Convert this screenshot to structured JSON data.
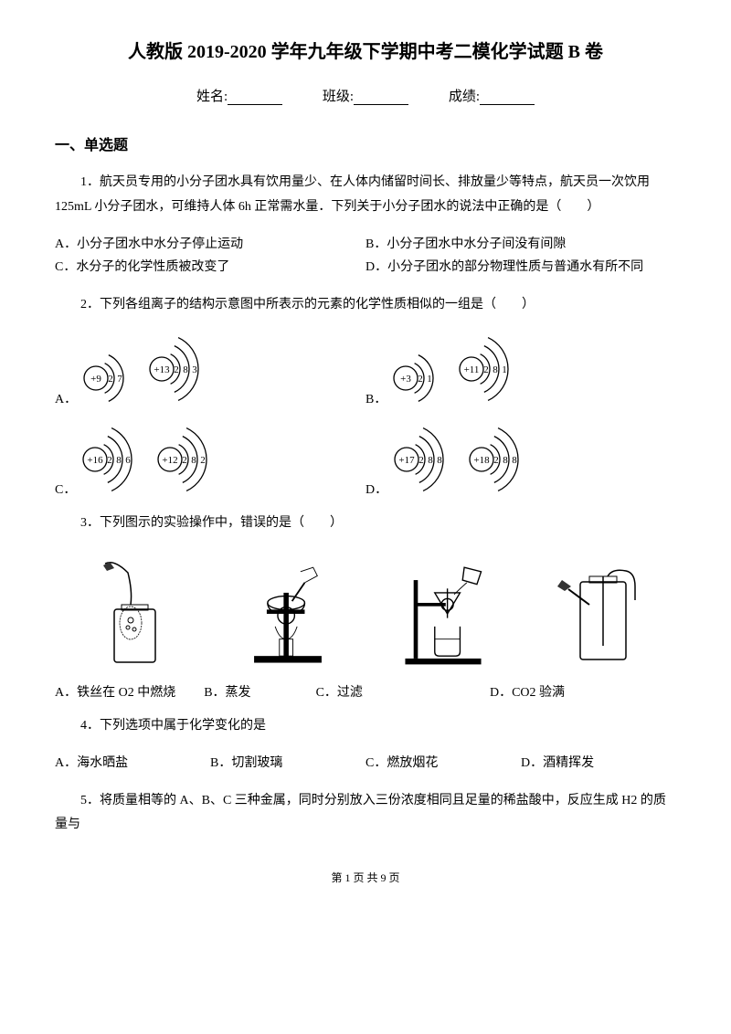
{
  "title": "人教版 2019-2020 学年九年级下学期中考二模化学试题 B 卷",
  "info": {
    "name_label": "姓名:",
    "class_label": "班级:",
    "score_label": "成绩:"
  },
  "section1": "一、单选题",
  "q1": {
    "text": "1．航天员专用的小分子团水具有饮用量少、在人体内储留时间长、排放量少等特点，航天员一次饮用 125mL 小分子团水，可维持人体 6h 正常需水量．下列关于小分子团水的说法中正确的是（　　）",
    "optA": "A．小分子团水中水分子停止运动",
    "optB": "B．小分子团水中水分子间没有间隙",
    "optC": "C．水分子的化学性质被改变了",
    "optD": "D．小分子团水的部分物理性质与普通水有所不同"
  },
  "q2": {
    "text": "2．下列各组离子的结构示意图中所表示的元素的化学性质相似的一组是（　　）",
    "labelA": "A．",
    "labelB": "B．",
    "labelC": "C．",
    "labelD": "D．",
    "atomA1": {
      "core": "+9",
      "shells": [
        "2",
        "7"
      ]
    },
    "atomA2": {
      "core": "+13",
      "shells": [
        "2",
        "8",
        "3"
      ]
    },
    "atomB1": {
      "core": "+3",
      "shells": [
        "2",
        "1"
      ]
    },
    "atomB2": {
      "core": "+11",
      "shells": [
        "2",
        "8",
        "1"
      ]
    },
    "atomC1": {
      "core": "+16",
      "shells": [
        "2",
        "8",
        "6"
      ]
    },
    "atomC2": {
      "core": "+12",
      "shells": [
        "2",
        "8",
        "2"
      ]
    },
    "atomD1": {
      "core": "+17",
      "shells": [
        "2",
        "8",
        "8"
      ]
    },
    "atomD2": {
      "core": "+18",
      "shells": [
        "2",
        "8",
        "8"
      ]
    }
  },
  "q3": {
    "text": "3．下列图示的实验操作中，错误的是（　　）",
    "optA": "A．铁丝在 O2 中燃烧",
    "optB": "B．蒸发",
    "optC": "C．过滤",
    "optD": "D．CO2 验满"
  },
  "q4": {
    "text": "4．下列选项中属于化学变化的是",
    "optA": "A．海水晒盐",
    "optB": "B．切割玻璃",
    "optC": "C．燃放烟花",
    "optD": "D．酒精挥发"
  },
  "q5": {
    "text": "5．将质量相等的 A、B、C 三种金属，同时分别放入三份浓度相同且足量的稀盐酸中，反应生成 H2 的质量与"
  },
  "footer": "第 1 页 共 9 页",
  "colors": {
    "text": "#000000",
    "bg": "#ffffff",
    "line": "#000000"
  }
}
